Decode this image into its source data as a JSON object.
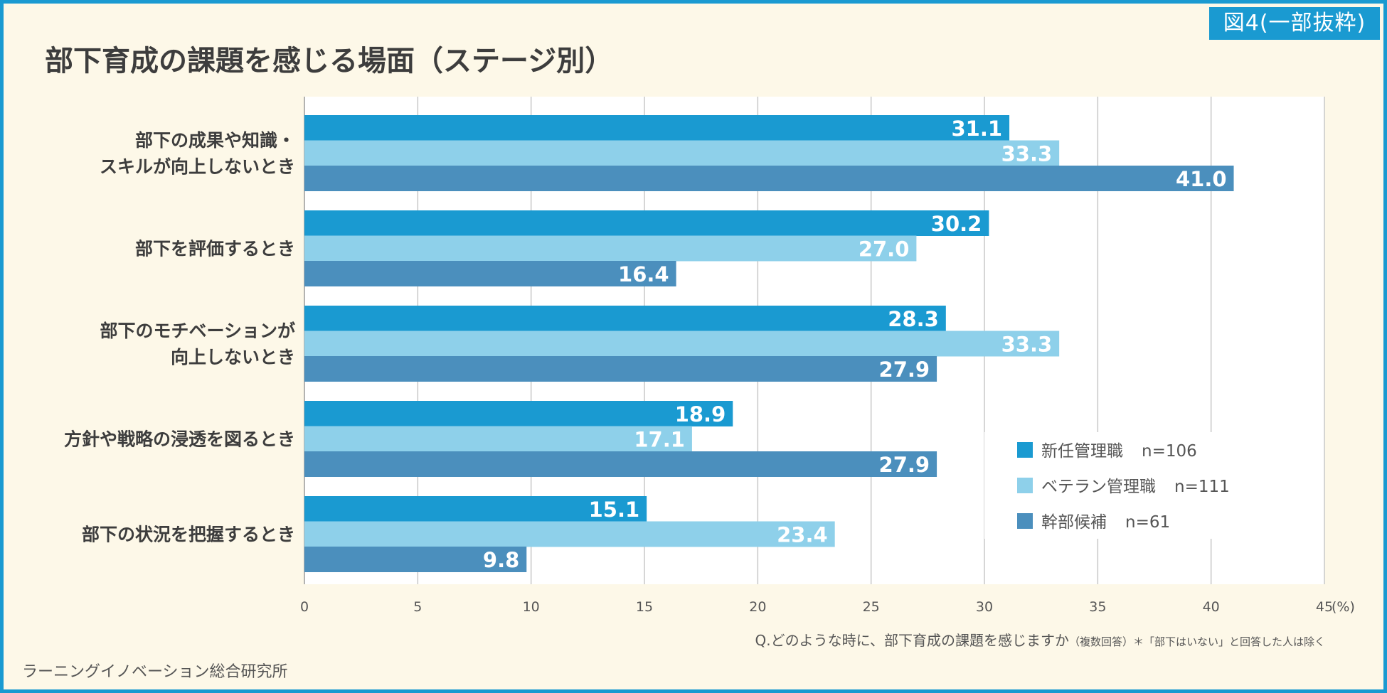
{
  "badge": "図4(一部抜粋)",
  "title": "部下育成の課題を感じる場面（ステージ別）",
  "question_main": "Q.どのような時に、部下育成の課題を感じますか",
  "question_note": "（複数回答）＊「部下はいない」と回答した人は除く",
  "source": "ラーニングイノベーション総合研究所",
  "colors": {
    "frame": "#1a9ad1",
    "background": "#fdf8e8",
    "plot": "#ffffff",
    "grid": "#c8c8c8"
  },
  "chart_data": {
    "type": "bar",
    "orientation": "horizontal",
    "title": "部下育成の課題を感じる場面（ステージ別）",
    "categories": [
      [
        "部下の成果や知識・",
        "スキルが向上しないとき"
      ],
      [
        "部下を評価するとき"
      ],
      [
        "部下のモチベーションが",
        "向上しないとき"
      ],
      [
        "方針や戦略の浸透を図るとき"
      ],
      [
        "部下の状況を把握するとき"
      ]
    ],
    "series": [
      {
        "name": "新任管理職",
        "n": "n=106",
        "color": "#1a9ad1",
        "values": [
          31.1,
          30.2,
          28.3,
          18.9,
          15.1
        ]
      },
      {
        "name": "ベテラン管理職",
        "n": "n=111",
        "color": "#8ed0ea",
        "values": [
          33.3,
          27.0,
          33.3,
          17.1,
          23.4
        ]
      },
      {
        "name": "幹部候補",
        "n": "n=61",
        "color": "#4b8fbd",
        "values": [
          41.0,
          16.4,
          27.9,
          27.9,
          9.8
        ]
      }
    ],
    "xlim": [
      0,
      45
    ],
    "xticks": [
      "0",
      "5",
      "10",
      "15",
      "20",
      "25",
      "30",
      "35",
      "40",
      "45"
    ],
    "xunit": "(%)",
    "grid": true,
    "legend_position": "bottom-right"
  }
}
